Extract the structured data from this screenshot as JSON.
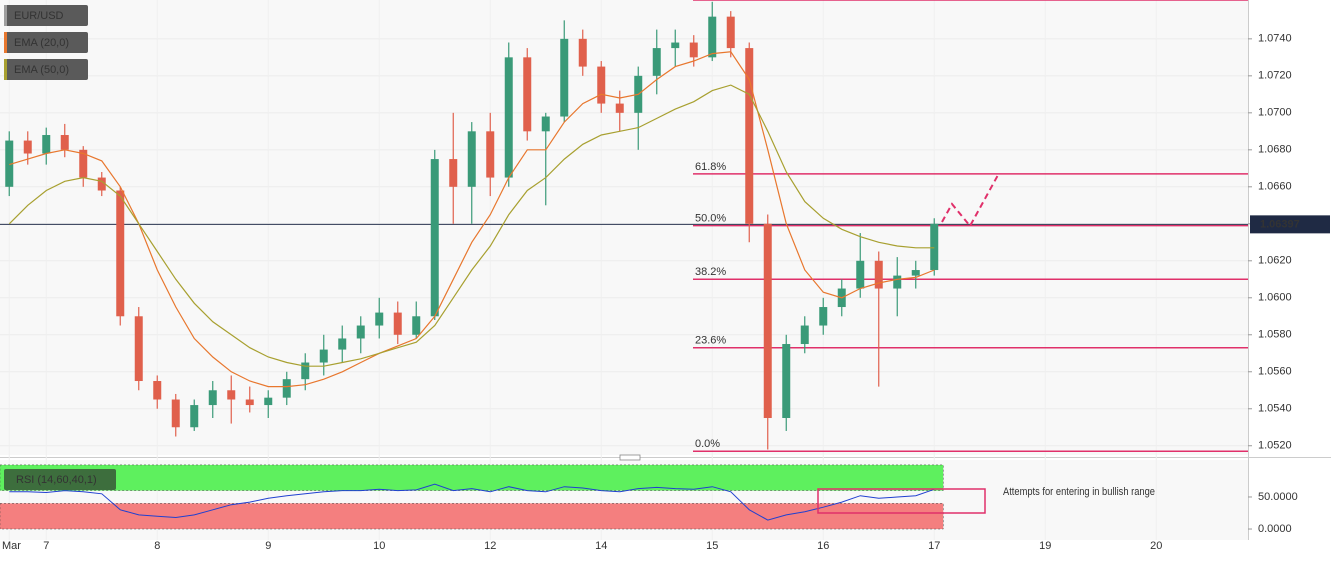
{
  "chart_data": [
    {
      "type": "candlestick",
      "symbol": "EUR/USD",
      "symbol_color": "#9e9e9e",
      "categories": [
        "Mar",
        null,
        "7",
        null,
        null,
        null,
        null,
        null,
        "8",
        null,
        null,
        null,
        null,
        null,
        "9",
        null,
        null,
        null,
        null,
        null,
        "10",
        null,
        null,
        null,
        null,
        null,
        "12",
        null,
        null,
        null,
        null,
        null,
        "14",
        null,
        null,
        null,
        null,
        null,
        "15",
        null,
        null,
        null,
        null,
        null,
        "16",
        null,
        null,
        null,
        null,
        null,
        "17",
        null,
        null,
        null,
        null,
        null,
        "19",
        null,
        null,
        null,
        null,
        null,
        "20",
        null,
        null,
        null,
        null
      ],
      "open": [
        1.066,
        1.0685,
        1.0678,
        1.0688,
        1.068,
        1.0665,
        1.0658,
        1.059,
        1.0555,
        1.0545,
        1.053,
        1.0542,
        1.055,
        1.0545,
        1.0542,
        1.0546,
        1.0556,
        1.0565,
        1.0572,
        1.0578,
        1.0585,
        1.0592,
        1.058,
        1.059,
        1.0675,
        1.066,
        1.069,
        1.0665,
        1.073,
        1.069,
        1.0698,
        1.074,
        1.0725,
        1.0705,
        1.07,
        1.072,
        1.0735,
        1.0738,
        1.073,
        1.0752,
        1.0735,
        1.064,
        1.0535,
        1.0575,
        1.0585,
        1.0595,
        1.0605,
        1.062,
        1.0605,
        1.0612,
        1.0615,
        null,
        null,
        null,
        null,
        null,
        null,
        null,
        null,
        null,
        null,
        null,
        null,
        null,
        null,
        null,
        null
      ],
      "high": [
        1.069,
        1.069,
        1.0692,
        1.0694,
        1.0682,
        1.0668,
        1.066,
        1.0595,
        1.0558,
        1.0548,
        1.0545,
        1.0555,
        1.0558,
        1.0552,
        1.055,
        1.056,
        1.057,
        1.058,
        1.0585,
        1.059,
        1.06,
        1.0598,
        1.0598,
        1.068,
        1.07,
        1.0695,
        1.07,
        1.0738,
        1.0735,
        1.07,
        1.075,
        1.0745,
        1.0728,
        1.0712,
        1.0725,
        1.0745,
        1.0745,
        1.0742,
        1.076,
        1.0755,
        1.0738,
        1.0645,
        1.058,
        1.059,
        1.06,
        1.061,
        1.0635,
        1.0625,
        1.0622,
        1.062,
        1.0643,
        null,
        null,
        null,
        null,
        null,
        null,
        null,
        null,
        null,
        null,
        null,
        null,
        null,
        null,
        null,
        null
      ],
      "low": [
        1.0655,
        1.0672,
        1.0672,
        1.0676,
        1.066,
        1.0655,
        1.0585,
        1.055,
        1.054,
        1.0525,
        1.0528,
        1.0535,
        1.0532,
        1.0538,
        1.0535,
        1.0542,
        1.055,
        1.0558,
        1.0565,
        1.057,
        1.0578,
        1.0575,
        1.0578,
        1.0588,
        1.064,
        1.064,
        1.0655,
        1.066,
        1.0685,
        1.065,
        1.0695,
        1.072,
        1.07,
        1.069,
        1.068,
        1.071,
        1.0725,
        1.0725,
        1.0728,
        1.073,
        1.063,
        1.0518,
        1.0528,
        1.057,
        1.058,
        1.059,
        1.06,
        1.0552,
        1.059,
        1.0605,
        1.0612,
        null,
        null,
        null,
        null,
        null,
        null,
        null,
        null,
        null,
        null,
        null,
        null,
        null,
        null,
        null,
        null
      ],
      "close": [
        1.0685,
        1.0678,
        1.0688,
        1.068,
        1.0665,
        1.0658,
        1.059,
        1.0555,
        1.0545,
        1.053,
        1.0542,
        1.055,
        1.0545,
        1.0542,
        1.0546,
        1.0556,
        1.0565,
        1.0572,
        1.0578,
        1.0585,
        1.0592,
        1.058,
        1.059,
        1.0675,
        1.066,
        1.069,
        1.0665,
        1.073,
        1.069,
        1.0698,
        1.074,
        1.0725,
        1.0705,
        1.07,
        1.072,
        1.0735,
        1.0738,
        1.073,
        1.0752,
        1.0735,
        1.064,
        1.0535,
        1.0575,
        1.0585,
        1.0595,
        1.0605,
        1.062,
        1.0605,
        1.0612,
        1.0615,
        1.064,
        null,
        null,
        null,
        null,
        null,
        null,
        null,
        null,
        null,
        null,
        null,
        null,
        null,
        null,
        null,
        null
      ],
      "up_color": "#3a9a78",
      "down_color": "#e0604c",
      "overlays": [
        {
          "name": "EMA (20,0)",
          "color": "#e8772e",
          "values": [
            1.0672,
            1.0675,
            1.0678,
            1.068,
            1.0678,
            1.0674,
            1.066,
            1.064,
            1.0615,
            1.0595,
            1.0578,
            1.0568,
            1.056,
            1.0555,
            1.0552,
            1.0552,
            1.0553,
            1.0556,
            1.056,
            1.0565,
            1.057,
            1.0574,
            1.0578,
            1.059,
            1.061,
            1.063,
            1.0645,
            1.0665,
            1.068,
            1.068,
            1.0695,
            1.0705,
            1.071,
            1.0708,
            1.071,
            1.0718,
            1.0725,
            1.0728,
            1.0732,
            1.0733,
            1.0718,
            1.068,
            1.064,
            1.0615,
            1.0603,
            1.06,
            1.0605,
            1.0608,
            1.061,
            1.0611,
            1.0615,
            null,
            null,
            null,
            null,
            null,
            null,
            null,
            null,
            null,
            null,
            null,
            null,
            null,
            null,
            null,
            null
          ]
        },
        {
          "name": "EMA (50,0)",
          "color": "#a8a030",
          "values": [
            1.064,
            1.065,
            1.0658,
            1.0663,
            1.0665,
            1.0663,
            1.0655,
            1.064,
            1.0625,
            1.061,
            1.0597,
            1.0587,
            1.058,
            1.0573,
            1.0568,
            1.0565,
            1.0563,
            1.0563,
            1.0565,
            1.0567,
            1.057,
            1.0573,
            1.0576,
            1.0585,
            1.06,
            1.0615,
            1.0628,
            1.0645,
            1.0658,
            1.0665,
            1.0675,
            1.0683,
            1.0688,
            1.069,
            1.0692,
            1.0697,
            1.0702,
            1.0706,
            1.0712,
            1.0715,
            1.071,
            1.069,
            1.0668,
            1.0652,
            1.0643,
            1.0637,
            1.0633,
            1.063,
            1.0628,
            1.0627,
            1.0627,
            null,
            null,
            null,
            null,
            null,
            null,
            null,
            null,
            null,
            null,
            null,
            null,
            null,
            null,
            null,
            null
          ]
        }
      ],
      "fib_color": "#e0306a",
      "fib_levels": [
        {
          "value": 1.0761,
          "label": null
        },
        {
          "value": 1.0667,
          "label": "61.8%"
        },
        {
          "value": 1.0639,
          "label": "50.0%"
        },
        {
          "value": 1.061,
          "label": "38.2%"
        },
        {
          "value": 1.0573,
          "label": "23.6%"
        },
        {
          "value": 1.0517,
          "label": "0.0%"
        }
      ],
      "last_price": 1.06397,
      "ylim": [
        1.0515,
        1.0761
      ],
      "yticks": [
        {
          "value": 1.052,
          "label": "1.0520"
        },
        {
          "value": 1.054,
          "label": "1.0540"
        },
        {
          "value": 1.056,
          "label": "1.0560"
        },
        {
          "value": 1.058,
          "label": "1.0580"
        },
        {
          "value": 1.06,
          "label": "1.0600"
        },
        {
          "value": 1.062,
          "label": "1.0620"
        },
        {
          "value": 1.064,
          "label": "1.0640"
        },
        {
          "value": 1.066,
          "label": "1.0660"
        },
        {
          "value": 1.068,
          "label": "1.0680"
        },
        {
          "value": 1.07,
          "label": "1.0700"
        },
        {
          "value": 1.072,
          "label": "1.0720"
        },
        {
          "value": 1.074,
          "label": "1.0740"
        }
      ],
      "grid": true
    },
    {
      "type": "line",
      "title": "RSI (14,60,40,1)",
      "color": "#2040d0",
      "values": [
        58,
        58,
        57,
        60,
        58,
        55,
        30,
        22,
        20,
        18,
        22,
        30,
        38,
        42,
        48,
        52,
        55,
        58,
        60,
        60,
        62,
        60,
        61,
        70,
        60,
        63,
        58,
        66,
        60,
        58,
        66,
        64,
        60,
        58,
        63,
        65,
        63,
        62,
        66,
        58,
        30,
        14,
        22,
        27,
        34,
        42,
        52,
        48,
        50,
        52,
        62,
        null,
        null,
        null,
        null,
        null,
        null,
        null,
        null,
        null,
        null,
        null,
        null,
        null,
        null,
        null,
        null
      ],
      "bands": [
        {
          "range": [
            60,
            100
          ],
          "color": "#5ef05e"
        },
        {
          "range": [
            0,
            40
          ],
          "color": "#f47f7f"
        }
      ],
      "annotation": "Attempts for entering  in bullish range",
      "ylim": [
        -14,
        103
      ],
      "yticks": [
        {
          "value": 50,
          "label": "50.0000"
        },
        {
          "value": 0,
          "label": "0.0000"
        }
      ]
    }
  ]
}
